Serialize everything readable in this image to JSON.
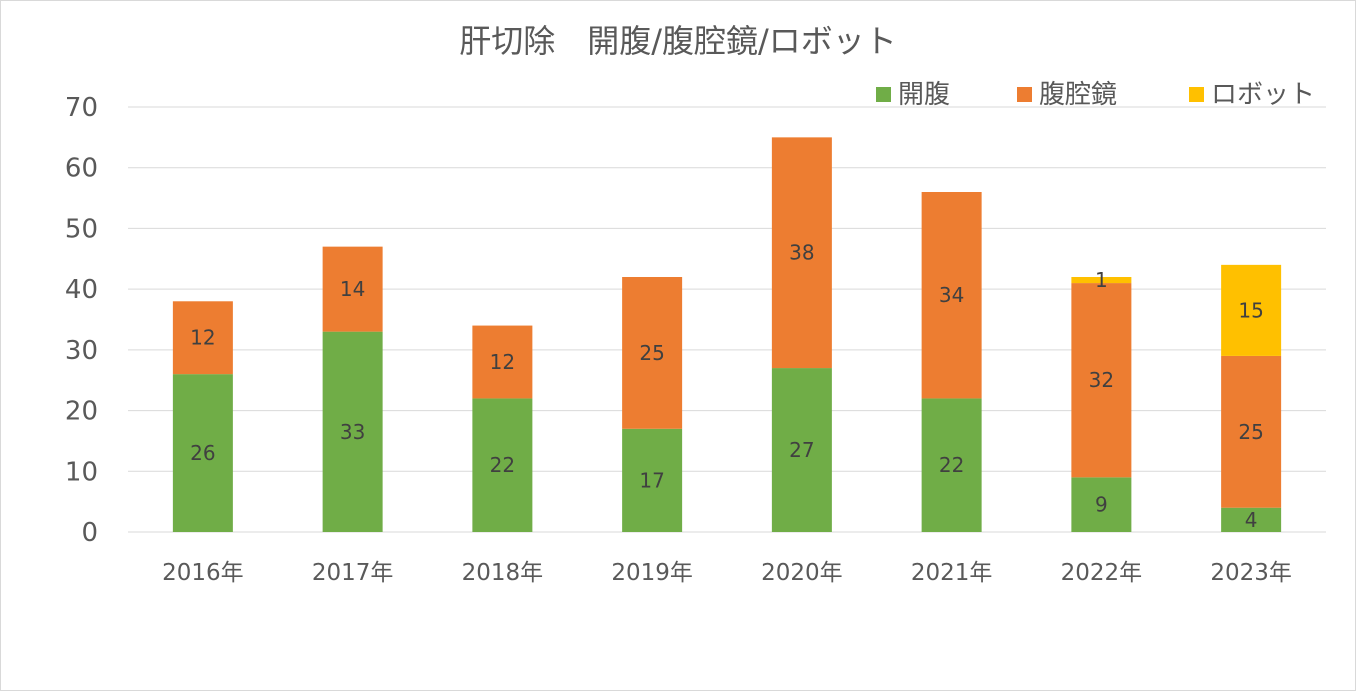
{
  "chart_data": {
    "type": "bar",
    "stacked": true,
    "title": "肝切除　開腹/腹腔鏡/ロボット",
    "categories": [
      "2016年",
      "2017年",
      "2018年",
      "2019年",
      "2020年",
      "2021年",
      "2022年",
      "2023年"
    ],
    "series": [
      {
        "name": "開腹",
        "color": "#70ad47",
        "values": [
          26,
          33,
          22,
          17,
          27,
          22,
          9,
          4
        ]
      },
      {
        "name": "腹腔鏡",
        "color": "#ed7d31",
        "values": [
          12,
          14,
          12,
          25,
          38,
          34,
          32,
          25
        ]
      },
      {
        "name": "ロボット",
        "color": "#ffc000",
        "values": [
          0,
          0,
          0,
          0,
          0,
          0,
          1,
          15
        ]
      }
    ],
    "ylim": [
      0,
      70
    ],
    "yticks": [
      0,
      10,
      20,
      30,
      40,
      50,
      60,
      70
    ],
    "xlabel": "",
    "ylabel": "",
    "grid": true,
    "legend": "top-right",
    "data_labels": true
  }
}
